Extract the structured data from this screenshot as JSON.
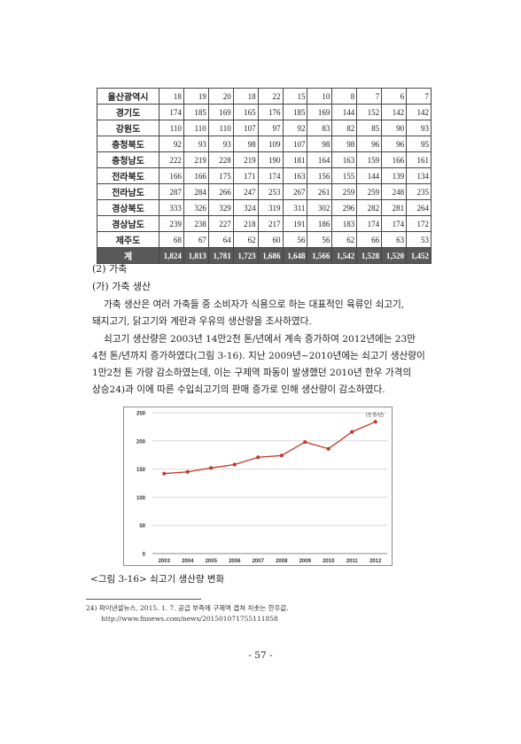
{
  "table": {
    "rows": [
      {
        "name": "울산광역시",
        "values": [
          "18",
          "19",
          "20",
          "18",
          "22",
          "15",
          "10",
          "8",
          "7",
          "6",
          "7"
        ]
      },
      {
        "name": "경기도",
        "values": [
          "174",
          "185",
          "169",
          "165",
          "176",
          "185",
          "169",
          "144",
          "152",
          "142",
          "142"
        ]
      },
      {
        "name": "강원도",
        "values": [
          "110",
          "110",
          "110",
          "107",
          "97",
          "92",
          "83",
          "82",
          "85",
          "90",
          "93"
        ]
      },
      {
        "name": "충청북도",
        "values": [
          "92",
          "93",
          "93",
          "98",
          "109",
          "107",
          "98",
          "98",
          "96",
          "96",
          "95"
        ]
      },
      {
        "name": "충청남도",
        "values": [
          "222",
          "219",
          "228",
          "219",
          "190",
          "181",
          "164",
          "163",
          "159",
          "166",
          "161"
        ]
      },
      {
        "name": "전라북도",
        "values": [
          "166",
          "166",
          "175",
          "171",
          "174",
          "163",
          "156",
          "155",
          "144",
          "139",
          "134"
        ]
      },
      {
        "name": "전라남도",
        "values": [
          "287",
          "284",
          "266",
          "247",
          "253",
          "267",
          "261",
          "259",
          "259",
          "248",
          "235"
        ]
      },
      {
        "name": "경상북도",
        "values": [
          "333",
          "326",
          "329",
          "324",
          "319",
          "311",
          "302",
          "296",
          "282",
          "281",
          "264"
        ]
      },
      {
        "name": "경상남도",
        "values": [
          "239",
          "238",
          "227",
          "218",
          "217",
          "191",
          "186",
          "183",
          "174",
          "174",
          "172"
        ]
      },
      {
        "name": "제주도",
        "values": [
          "68",
          "67",
          "64",
          "62",
          "60",
          "56",
          "56",
          "62",
          "66",
          "63",
          "53"
        ]
      }
    ],
    "total": {
      "name": "계",
      "values": [
        "1,824",
        "1,813",
        "1,781",
        "1,723",
        "1,686",
        "1,648",
        "1,566",
        "1,542",
        "1,528",
        "1,520",
        "1,452"
      ]
    }
  },
  "text": {
    "section": "(2)  가축",
    "subsection": "(가)  가축  생산",
    "para1_line1": "가축  생산은  여러  가축들  중  소비자가  식용으로  하는  대표적인  육류인  쇠고기,",
    "para1_line2": "돼지고기,  닭고기와  계란과  우유의  생산량을  조사하였다.",
    "para2_line1": "쇠고기  생산량은  2003년  14만2천  톤/년에서  계속  증가하여  2012년에는  23만",
    "para2_line2": "4천  톤/년까지  증가하였다(그림  3-16).  지난  2009년~2010년에는  쇠고기  생산량이",
    "para2_line3": "1만2천  톤  가량  감소하였는데,  이는  구제역  파동이  발생했던  2010년  한우  가격의",
    "para2_line4": "상승24)과  이에  따른  수입쇠고기의  판매  증가로  인해  생산량이  감소하였다."
  },
  "caption": "<그림  3-16>  쇠고기  생산량  변화",
  "footnote": {
    "line1": "24)  파이낸셜뉴스,  2015.  1.  7.  공급  부족에  구제역  겹쳐  치솟는  한우값.",
    "line2": "http://www.fnnews.com/news/201501071755111858"
  },
  "page_number": "- 57 -",
  "chart_data": {
    "type": "line",
    "unit_label": "(천 톤/년)",
    "x": [
      "2003",
      "2004",
      "2005",
      "2006",
      "2007",
      "2008",
      "2009",
      "2010",
      "2011",
      "2012"
    ],
    "series": [
      {
        "values": [
          142,
          145,
          152,
          158,
          171,
          174,
          198,
          186,
          216,
          234
        ]
      }
    ],
    "ylim": [
      0,
      250
    ],
    "yticks": [
      0,
      50,
      100,
      150,
      200,
      250
    ],
    "grid": true,
    "line_color": "#c0392b"
  }
}
